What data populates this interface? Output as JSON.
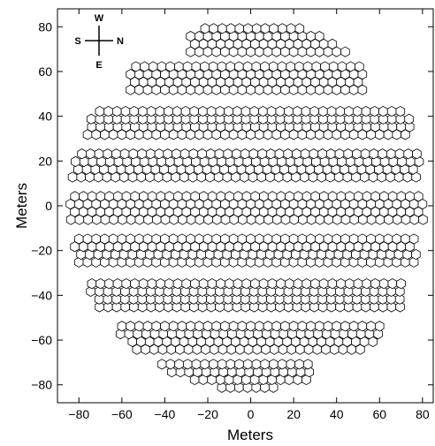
{
  "chart_data": {
    "type": "scatter",
    "title": "",
    "xlabel": "Meters",
    "ylabel": "Meters",
    "xlim": [
      -90,
      85
    ],
    "ylim": [
      -88,
      88
    ],
    "x_ticks": [
      -80,
      -60,
      -40,
      -20,
      0,
      20,
      40,
      60,
      80
    ],
    "y_ticks": [
      -80,
      -60,
      -40,
      -20,
      0,
      20,
      40,
      60,
      80
    ],
    "marker": "hexagon",
    "hex_spacing_m": 4.0,
    "array_radius_m": 82,
    "compass": {
      "top": "W",
      "left": "S",
      "right": "N",
      "bottom": "E"
    },
    "rows": [
      {
        "y_center": 74,
        "x_min": -28,
        "x_max": 45
      },
      {
        "y_center": 57,
        "x_min": -56,
        "x_max": 52
      },
      {
        "y_center": 37,
        "x_min": -76,
        "x_max": 75
      },
      {
        "y_center": 18,
        "x_min": -84,
        "x_max": 79
      },
      {
        "y_center": -1,
        "x_min": -86,
        "x_max": 82
      },
      {
        "y_center": -20,
        "x_min": -82,
        "x_max": 78
      },
      {
        "y_center": -40,
        "x_min": -76,
        "x_max": 72
      },
      {
        "y_center": -59,
        "x_min": -62,
        "x_max": 60
      },
      {
        "y_center": -76,
        "x_min": -46,
        "x_max": 30
      }
    ]
  }
}
